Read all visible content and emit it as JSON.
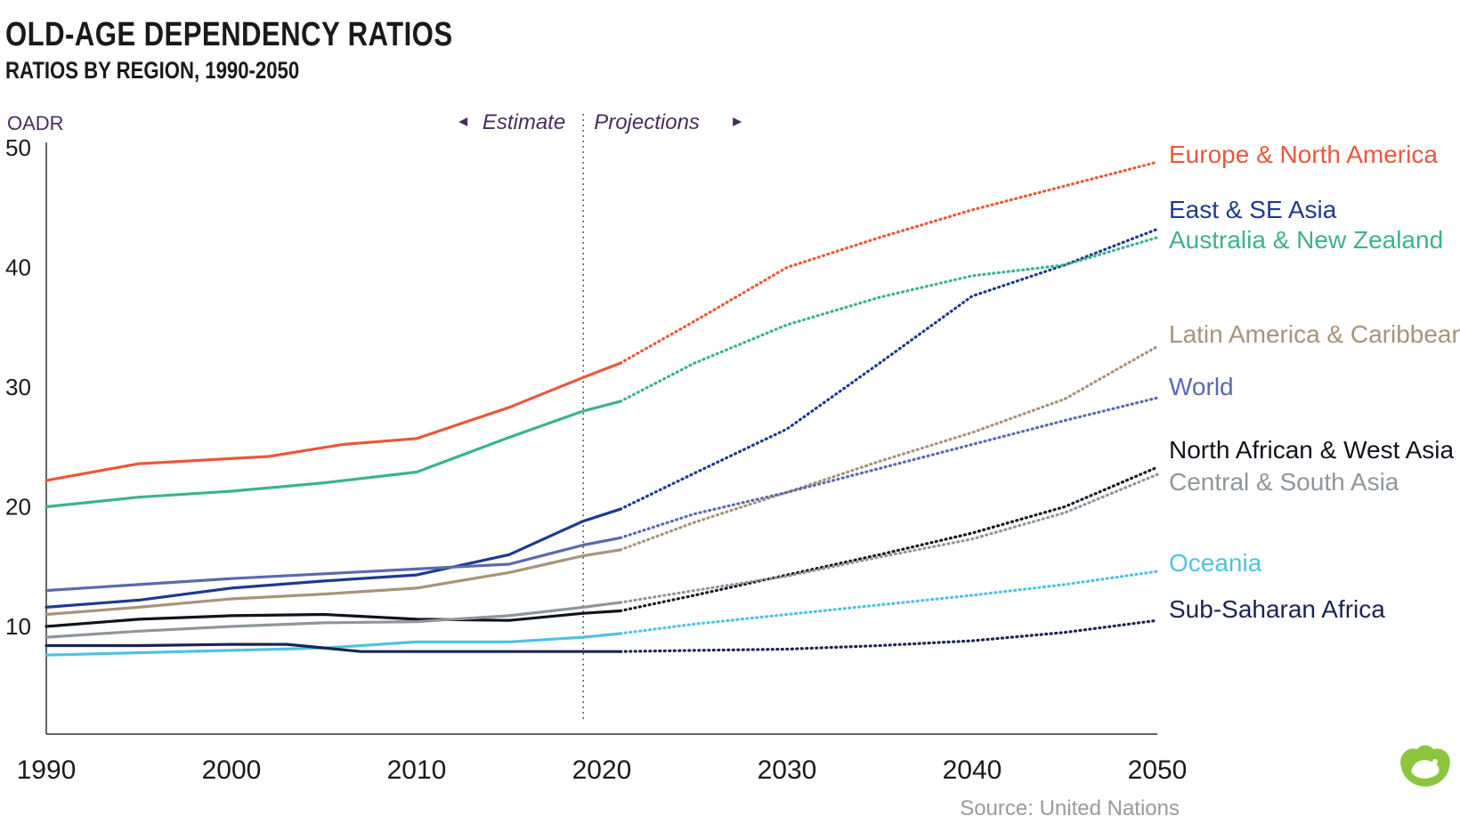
{
  "header": {
    "title": "OLD-AGE DEPENDENCY RATIOS",
    "subtitle": "RATIOS BY REGION, 1990-2050"
  },
  "source": "Source: United Nations",
  "logo_icon": "visual-capitalist-logo-icon",
  "chart_data": {
    "type": "line",
    "title": "OLD-AGE DEPENDENCY RATIOS",
    "subtitle": "RATIOS BY REGION, 1990-2050",
    "ylabel": "OADR",
    "xlabel": "",
    "xlim": [
      1990,
      2050
    ],
    "ylim": [
      1,
      50
    ],
    "x_ticks": [
      1990,
      2000,
      2010,
      2020,
      2030,
      2040,
      2050
    ],
    "y_ticks": [
      10,
      20,
      30,
      40,
      50
    ],
    "grid": false,
    "divider": {
      "x": 2019,
      "left_label": "Estimate",
      "right_label": "Projections"
    },
    "projection_start": 2021,
    "series": [
      {
        "name": "Europe & North America",
        "color": "#e8593a",
        "x": [
          1990,
          1995,
          2002,
          2006,
          2010,
          2015,
          2019,
          2021,
          2025,
          2030,
          2035,
          2040,
          2045,
          2050
        ],
        "values": [
          22.2,
          23.6,
          24.2,
          25.2,
          25.7,
          28.3,
          30.8,
          32.0,
          35.5,
          40.0,
          42.5,
          44.8,
          46.8,
          48.8
        ]
      },
      {
        "name": "East & SE Asia",
        "color": "#1e3a8f",
        "x": [
          1990,
          1995,
          2000,
          2005,
          2010,
          2015,
          2019,
          2021,
          2025,
          2030,
          2035,
          2040,
          2045,
          2050
        ],
        "values": [
          11.6,
          12.2,
          13.2,
          13.8,
          14.3,
          16.0,
          18.8,
          19.8,
          22.8,
          26.5,
          32.0,
          37.6,
          40.2,
          43.2
        ]
      },
      {
        "name": "Australia & New Zealand",
        "color": "#3db38b",
        "x": [
          1990,
          1995,
          2000,
          2005,
          2010,
          2015,
          2019,
          2021,
          2025,
          2030,
          2035,
          2040,
          2045,
          2050
        ],
        "values": [
          20.0,
          20.8,
          21.3,
          22.0,
          22.9,
          25.8,
          28.0,
          28.8,
          32.0,
          35.2,
          37.5,
          39.3,
          40.2,
          42.5
        ]
      },
      {
        "name": "Latin America & Caribbean",
        "color": "#a8937a",
        "x": [
          1990,
          1995,
          2000,
          2005,
          2010,
          2015,
          2019,
          2021,
          2025,
          2030,
          2035,
          2040,
          2045,
          2050
        ],
        "values": [
          11.0,
          11.6,
          12.3,
          12.7,
          13.2,
          14.5,
          15.9,
          16.4,
          18.7,
          21.2,
          23.8,
          26.2,
          29.0,
          33.4
        ]
      },
      {
        "name": "World",
        "color": "#5b6aae",
        "x": [
          1990,
          1995,
          2000,
          2005,
          2010,
          2015,
          2019,
          2021,
          2025,
          2030,
          2035,
          2040,
          2045,
          2050
        ],
        "values": [
          13.0,
          13.5,
          14.0,
          14.4,
          14.8,
          15.2,
          16.8,
          17.4,
          19.4,
          21.2,
          23.2,
          25.2,
          27.2,
          29.1
        ]
      },
      {
        "name": "North African & West Asia",
        "color": "#11131c",
        "x": [
          1990,
          1995,
          2000,
          2005,
          2010,
          2015,
          2019,
          2021,
          2025,
          2030,
          2035,
          2040,
          2045,
          2050
        ],
        "values": [
          10.0,
          10.6,
          10.9,
          11.0,
          10.6,
          10.5,
          11.1,
          11.3,
          12.6,
          14.3,
          16.0,
          17.8,
          20.0,
          23.3
        ]
      },
      {
        "name": "Central & South Asia",
        "color": "#8f969b",
        "x": [
          1990,
          1995,
          2000,
          2005,
          2010,
          2015,
          2019,
          2021,
          2025,
          2030,
          2035,
          2040,
          2045,
          2050
        ],
        "values": [
          9.1,
          9.6,
          10.0,
          10.3,
          10.4,
          10.9,
          11.6,
          12.0,
          13.0,
          14.2,
          15.8,
          17.3,
          19.5,
          22.7
        ]
      },
      {
        "name": "Oceania",
        "color": "#52c2df",
        "x": [
          1990,
          1995,
          2000,
          2005,
          2010,
          2015,
          2019,
          2021,
          2025,
          2030,
          2035,
          2040,
          2045,
          2050
        ],
        "values": [
          7.6,
          7.8,
          8.0,
          8.2,
          8.7,
          8.7,
          9.1,
          9.4,
          10.2,
          11.0,
          11.8,
          12.6,
          13.5,
          14.6
        ]
      },
      {
        "name": "Sub-Saharan Africa",
        "color": "#1b2452",
        "x": [
          1990,
          1995,
          2000,
          2003,
          2007,
          2010,
          2015,
          2019,
          2021,
          2025,
          2030,
          2035,
          2040,
          2045,
          2050
        ],
        "values": [
          8.4,
          8.4,
          8.5,
          8.5,
          7.9,
          7.9,
          7.9,
          7.9,
          7.9,
          8.0,
          8.1,
          8.4,
          8.8,
          9.5,
          10.5
        ]
      }
    ]
  }
}
